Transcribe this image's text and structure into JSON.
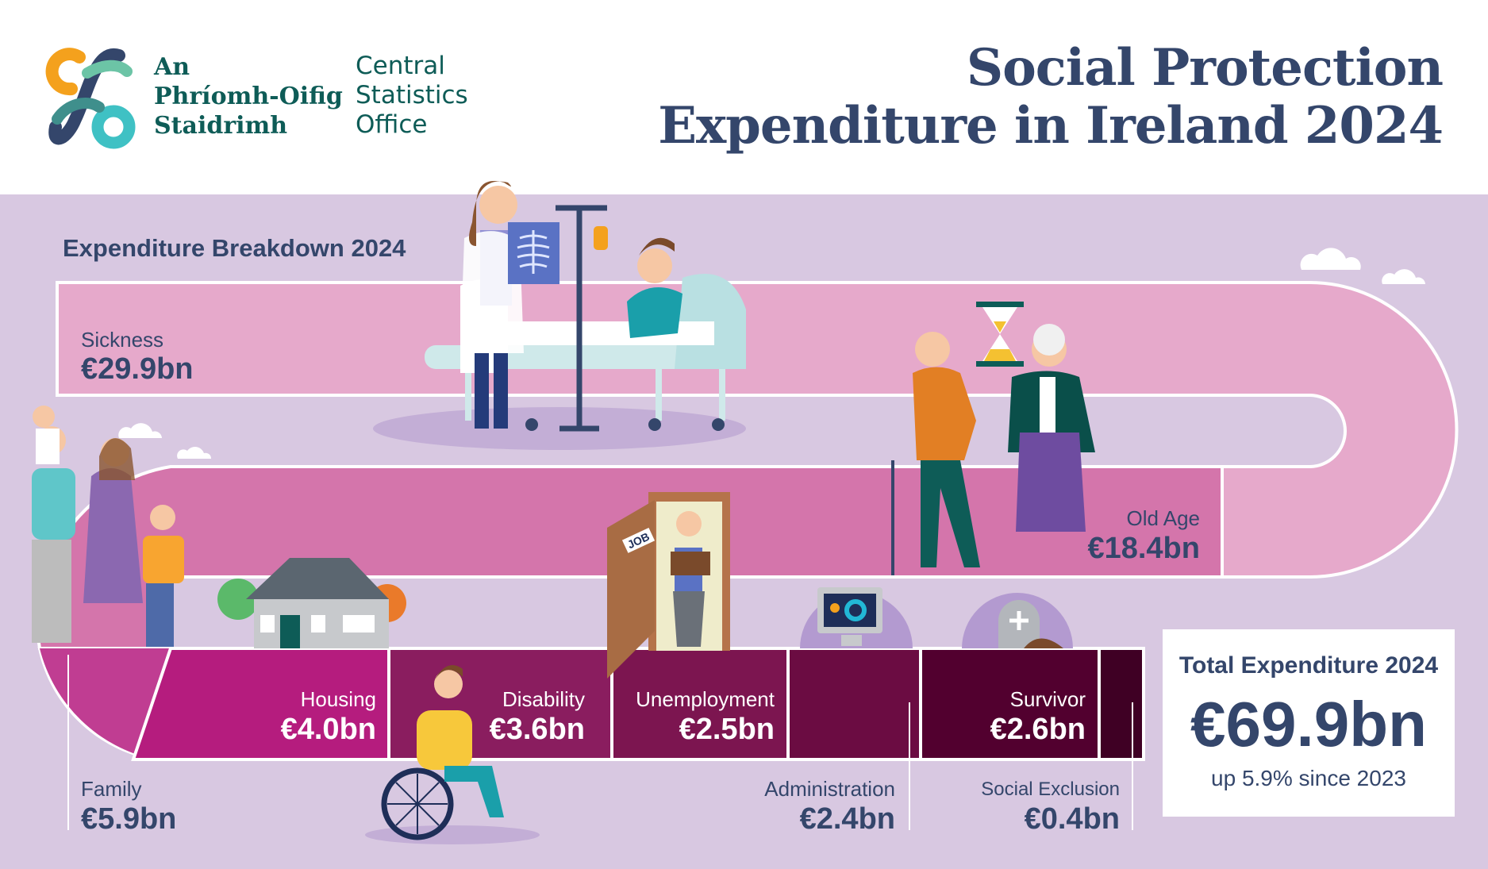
{
  "header": {
    "logo_irish": [
      "An",
      "Phríomh-Oifig",
      "Staidrimh"
    ],
    "logo_english": [
      "Central",
      "Statistics",
      "Office"
    ],
    "title_line1": "Social Protection",
    "title_line2": "Expenditure in Ireland 2024"
  },
  "section_title": "Expenditure Breakdown 2024",
  "breakdown": {
    "sickness": {
      "label": "Sickness",
      "value": "€29.9bn",
      "color": "#e6a9cb"
    },
    "old_age": {
      "label": "Old Age",
      "value": "€18.4bn",
      "color": "#d475ab"
    },
    "family": {
      "label": "Family",
      "value": "€5.9bn",
      "color": "#c03d92"
    },
    "housing": {
      "label": "Housing",
      "value": "€4.0bn",
      "color": "#b51c7e"
    },
    "disability": {
      "label": "Disability",
      "value": "€3.6bn",
      "color": "#8a1d5f"
    },
    "unemployment": {
      "label": "Unemployment",
      "value": "€2.5bn",
      "color": "#7c1550"
    },
    "administration": {
      "label": "Administration",
      "value": "€2.4bn",
      "color": "#6b0c42"
    },
    "survivor": {
      "label": "Survivor",
      "value": "€2.6bn",
      "color": "#52002f"
    },
    "social_exclusion": {
      "label": "Social Exclusion",
      "value": "€0.4bn",
      "color": "#3f0024"
    }
  },
  "total": {
    "label": "Total Expenditure 2024",
    "value": "€69.9bn",
    "change": "up 5.9% since 2023"
  },
  "illustrations": {
    "job_sign": "JOB"
  }
}
